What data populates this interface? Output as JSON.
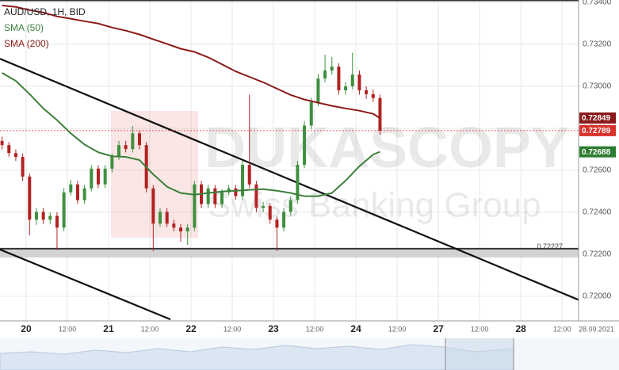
{
  "chart_data": {
    "type": "candlestick",
    "title": "AUD/USD, 1H, BID",
    "watermark": [
      "DUKASCOPY",
      "Swiss Banking Group"
    ],
    "xlim": [
      -7.6,
      160.8
    ],
    "ylim": [
      0.71883,
      0.73411
    ],
    "grid": true,
    "xticks": [
      {
        "value": 0,
        "label": "20"
      },
      {
        "value": 12,
        "label": "12:00"
      },
      {
        "value": 24,
        "label": "21"
      },
      {
        "value": 36,
        "label": "12:00"
      },
      {
        "value": 48,
        "label": "22"
      },
      {
        "value": 60,
        "label": "12:00"
      },
      {
        "value": 72,
        "label": "23"
      },
      {
        "value": 84,
        "label": "12:00"
      },
      {
        "value": 96,
        "label": "24"
      },
      {
        "value": 108,
        "label": "12:00"
      },
      {
        "value": 120,
        "label": "27"
      },
      {
        "value": 132,
        "label": "12:00"
      },
      {
        "value": 144,
        "label": "28"
      },
      {
        "value": 156,
        "label": "12:00"
      },
      {
        "value": 166,
        "label": "28.09.2021"
      }
    ],
    "yticks": [
      {
        "value": 0.734,
        "label": "0.73400"
      },
      {
        "value": 0.732,
        "label": "0.73200"
      },
      {
        "value": 0.73,
        "label": "0.73000"
      },
      {
        "value": 0.728,
        "label": "0.72800"
      },
      {
        "value": 0.726,
        "label": "0.72600"
      },
      {
        "value": 0.724,
        "label": "0.72400"
      },
      {
        "value": 0.722,
        "label": "0.72200"
      },
      {
        "value": 0.72,
        "label": "0.72000"
      }
    ],
    "up_color": "#3f8f3f",
    "down_color": "#b22222",
    "candles": {
      "x": [
        -7,
        -5,
        -3,
        -1,
        1,
        3,
        5,
        7,
        9,
        11,
        13,
        15,
        17,
        19,
        21,
        23,
        25,
        27,
        29,
        31,
        33,
        35,
        37,
        39,
        41,
        43,
        45,
        47,
        49,
        51,
        53,
        55,
        57,
        59,
        61,
        63,
        65,
        67,
        69,
        71,
        73,
        75,
        77,
        79,
        81,
        83,
        85,
        87,
        89,
        91,
        93,
        95,
        97,
        99,
        101,
        103
      ],
      "open": [
        0.7274,
        0.7272,
        0.72682,
        0.72664,
        0.7257,
        0.72365,
        0.72402,
        0.72365,
        0.72383,
        0.72327,
        0.72495,
        0.72533,
        0.72458,
        0.72514,
        0.72608,
        0.72533,
        0.72608,
        0.72664,
        0.7272,
        0.72701,
        0.72776,
        0.7272,
        0.72514,
        0.72346,
        0.72402,
        0.72346,
        0.72327,
        0.72309,
        0.72327,
        0.72533,
        0.72439,
        0.72514,
        0.72439,
        0.72495,
        0.72514,
        0.72477,
        0.72626,
        0.72533,
        0.72421,
        0.7243,
        0.72365,
        0.72327,
        0.72402,
        0.72458,
        0.72626,
        0.72813,
        0.72925,
        0.73037,
        0.73075,
        0.73094,
        0.72981,
        0.73,
        0.73056,
        0.72981,
        0.72963,
        0.72944
      ],
      "high": [
        0.7276,
        0.72735,
        0.727,
        0.7268,
        0.72585,
        0.7242,
        0.7242,
        0.724,
        0.724,
        0.72515,
        0.72555,
        0.7255,
        0.7253,
        0.72625,
        0.72625,
        0.72625,
        0.7268,
        0.7274,
        0.7274,
        0.7281,
        0.7279,
        0.72735,
        0.7253,
        0.7242,
        0.7242,
        0.72365,
        0.72345,
        0.72345,
        0.7255,
        0.7255,
        0.7253,
        0.7253,
        0.7251,
        0.7253,
        0.7253,
        0.72645,
        0.7296,
        0.7255,
        0.7245,
        0.72445,
        0.7238,
        0.7242,
        0.72475,
        0.72645,
        0.72835,
        0.72945,
        0.7306,
        0.7315,
        0.7314,
        0.7311,
        0.7302,
        0.7316,
        0.73075,
        0.73,
        0.72985,
        0.7296
      ],
      "low": [
        0.727,
        0.72665,
        0.72645,
        0.7255,
        0.7229,
        0.7234,
        0.72345,
        0.72345,
        0.7222,
        0.7231,
        0.7248,
        0.7244,
        0.7244,
        0.725,
        0.72515,
        0.72515,
        0.7259,
        0.7265,
        0.72685,
        0.72685,
        0.727,
        0.72495,
        0.72215,
        0.7233,
        0.7233,
        0.7231,
        0.7226,
        0.72245,
        0.7231,
        0.7242,
        0.7242,
        0.7242,
        0.7242,
        0.7248,
        0.7246,
        0.7246,
        0.72515,
        0.724,
        0.724,
        0.72345,
        0.72215,
        0.7231,
        0.72385,
        0.7244,
        0.7261,
        0.72795,
        0.72905,
        0.7302,
        0.73055,
        0.7296,
        0.7296,
        0.72985,
        0.7296,
        0.7294,
        0.72925,
        0.7277
      ],
      "close": [
        0.7272,
        0.72682,
        0.72664,
        0.7257,
        0.72365,
        0.72402,
        0.72365,
        0.72383,
        0.72327,
        0.72495,
        0.72533,
        0.72458,
        0.72514,
        0.72608,
        0.72533,
        0.72608,
        0.72664,
        0.7272,
        0.72701,
        0.72776,
        0.7272,
        0.72514,
        0.72346,
        0.72402,
        0.72346,
        0.72327,
        0.72309,
        0.72327,
        0.72533,
        0.72439,
        0.72514,
        0.72439,
        0.72495,
        0.72514,
        0.72477,
        0.72626,
        0.72533,
        0.72421,
        0.7243,
        0.72365,
        0.72327,
        0.72402,
        0.72458,
        0.72626,
        0.72813,
        0.72925,
        0.73037,
        0.73075,
        0.73094,
        0.72981,
        0.73,
        0.73056,
        0.72981,
        0.72963,
        0.72944,
        0.72789
      ]
    },
    "series": [
      {
        "name": "SMA (50)",
        "color": "#3b7f3b",
        "x": [
          -7,
          -3,
          1,
          5,
          9,
          13,
          17,
          21,
          25,
          29,
          33,
          37,
          41,
          45,
          49,
          53,
          57,
          61,
          65,
          69,
          73,
          77,
          81,
          85,
          89,
          93,
          97,
          101,
          103
        ],
        "values": [
          0.73064,
          0.73026,
          0.72963,
          0.72895,
          0.72839,
          0.72776,
          0.72723,
          0.72686,
          0.72667,
          0.72664,
          0.72649,
          0.72581,
          0.72522,
          0.72492,
          0.72484,
          0.72492,
          0.72499,
          0.72503,
          0.72507,
          0.7251,
          0.72503,
          0.72492,
          0.72477,
          0.72477,
          0.72492,
          0.72551,
          0.72619,
          0.72675,
          0.72688
        ]
      },
      {
        "name": "SMA (200)",
        "color": "#8b1a1a",
        "x": [
          -7,
          -3,
          1,
          5,
          9,
          13,
          17,
          21,
          25,
          29,
          33,
          37,
          41,
          45,
          49,
          53,
          57,
          61,
          65,
          69,
          73,
          77,
          81,
          85,
          89,
          93,
          97,
          101,
          103
        ],
        "values": [
          0.73385,
          0.73378,
          0.73363,
          0.73351,
          0.73333,
          0.73322,
          0.7331,
          0.73299,
          0.7328,
          0.73265,
          0.73247,
          0.73224,
          0.73202,
          0.73179,
          0.73164,
          0.73138,
          0.73105,
          0.73071,
          0.73045,
          0.73019,
          0.72989,
          0.72959,
          0.72937,
          0.72922,
          0.72907,
          0.72895,
          0.72884,
          0.72869,
          0.72849
        ]
      }
    ],
    "trend_lines": [
      {
        "color": "#111111",
        "x": [
          -7.6,
          160.8
        ],
        "values": [
          0.73131,
          0.71983
        ]
      },
      {
        "color": "#111111",
        "x": [
          -7.6,
          42
        ],
        "values": [
          0.72223,
          0.7189
        ]
      }
    ],
    "levels": [
      0.73409,
      0.72227
    ],
    "support_zone": [
      0.72185,
      0.72227
    ],
    "price_tags": [
      {
        "value": 0.72849,
        "color": "#8b1a1a"
      },
      {
        "value": 0.72789,
        "color": "#d9302b"
      },
      {
        "value": 0.72688,
        "color": "#2e7d32"
      }
    ]
  }
}
